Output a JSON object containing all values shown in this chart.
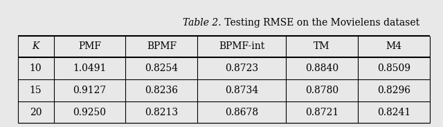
{
  "title_italic": "Table 2.",
  "title_normal": " Testing RMSE on the Movielens dataset",
  "columns": [
    "K",
    "PMF",
    "BPMF",
    "BPMF-int",
    "TM",
    "M4"
  ],
  "rows": [
    [
      "10",
      "1.0491",
      "0.8254",
      "0.8723",
      "0.8840",
      "0.8509"
    ],
    [
      "15",
      "0.9127",
      "0.8236",
      "0.8734",
      "0.8780",
      "0.8296"
    ],
    [
      "20",
      "0.9250",
      "0.8213",
      "0.8678",
      "0.8721",
      "0.8241"
    ]
  ],
  "col_widths": [
    0.55,
    1.1,
    1.1,
    1.35,
    1.1,
    1.1
  ],
  "background_color": "#e8e8e8",
  "font_size": 10,
  "title_font_size": 10
}
